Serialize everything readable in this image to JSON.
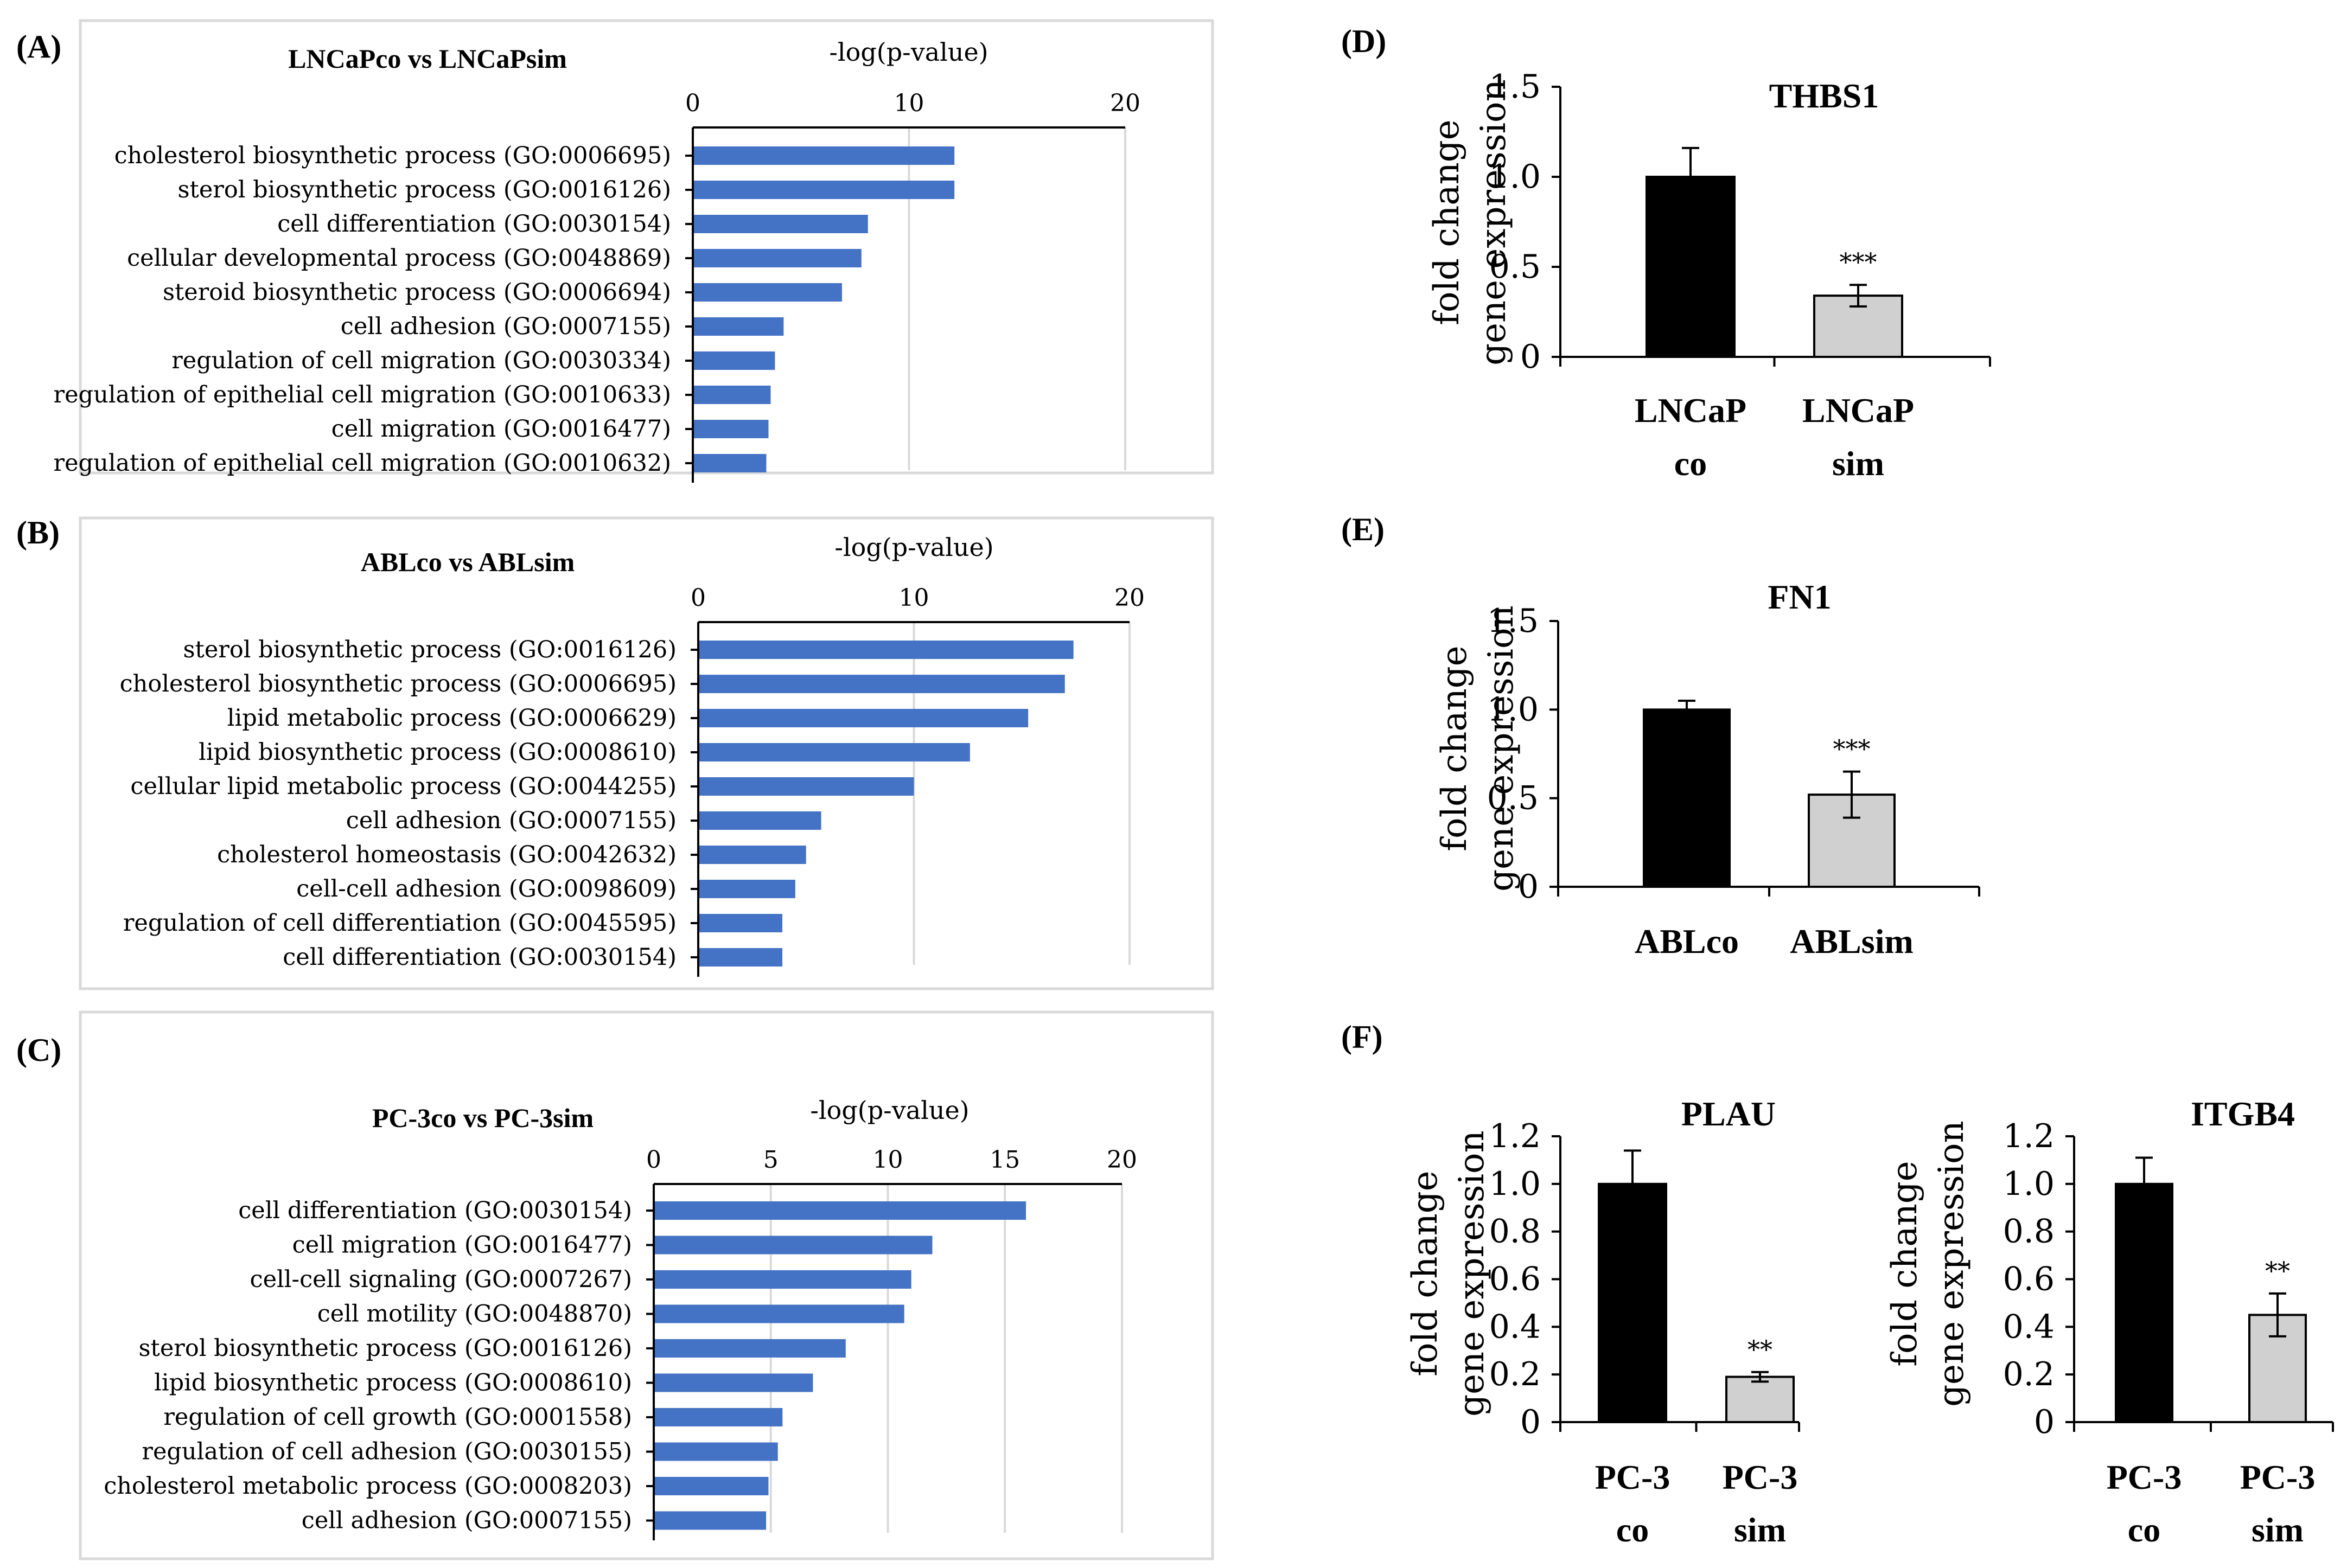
{
  "panel_labels": [
    "(A)",
    "(B)",
    "(C)",
    "(D)",
    "(E)",
    "(F)"
  ],
  "colors": {
    "go_bar": "#4472c4",
    "control_bar": "#000000",
    "treated_bar": "#d0d0d0",
    "frame": "#d9d9d9"
  },
  "chart_data": [
    {
      "id": "A",
      "type": "bar",
      "orientation": "horizontal",
      "title": "LNCaPco vs LNCaPsim",
      "xlabel": "-log(p-value)",
      "xlim": [
        0,
        20
      ],
      "xticks": [
        0,
        10,
        20
      ],
      "categories": [
        "cholesterol biosynthetic process (GO:0006695)",
        "sterol biosynthetic process (GO:0016126)",
        "cell differentiation (GO:0030154)",
        "cellular developmental process (GO:0048869)",
        "steroid biosynthetic process (GO:0006694)",
        "cell adhesion (GO:0007155)",
        "regulation of cell migration (GO:0030334)",
        "regulation of epithelial cell migration (GO:0010633)",
        "cell migration (GO:0016477)",
        "regulation of epithelial cell migration (GO:0010632)"
      ],
      "values": [
        12.1,
        12.1,
        8.1,
        7.8,
        6.9,
        4.2,
        3.8,
        3.6,
        3.5,
        3.4
      ]
    },
    {
      "id": "B",
      "type": "bar",
      "orientation": "horizontal",
      "title": "ABLco vs ABLsim",
      "xlabel": "-log(p-value)",
      "xlim": [
        0,
        20
      ],
      "xticks": [
        0,
        10,
        20
      ],
      "categories": [
        "sterol biosynthetic process (GO:0016126)",
        "cholesterol biosynthetic process (GO:0006695)",
        "lipid metabolic process (GO:0006629)",
        "lipid biosynthetic process (GO:0008610)",
        "cellular lipid metabolic process (GO:0044255)",
        "cell adhesion (GO:0007155)",
        "cholesterol homeostasis (GO:0042632)",
        "cell-cell adhesion (GO:0098609)",
        "regulation of cell differentiation (GO:0045595)",
        "cell differentiation (GO:0030154)"
      ],
      "values": [
        17.4,
        17.0,
        15.3,
        12.6,
        10.0,
        5.7,
        5.0,
        4.5,
        3.9,
        3.9
      ]
    },
    {
      "id": "C",
      "type": "bar",
      "orientation": "horizontal",
      "title": "PC-3co vs PC-3sim",
      "xlabel": "-log(p-value)",
      "xlim": [
        0,
        20
      ],
      "xticks": [
        0,
        5,
        10,
        15,
        20
      ],
      "categories": [
        "cell differentiation (GO:0030154)",
        "cell migration (GO:0016477)",
        "cell-cell signaling (GO:0007267)",
        "cell motility (GO:0048870)",
        "sterol biosynthetic process (GO:0016126)",
        "lipid biosynthetic process (GO:0008610)",
        "regulation of cell growth (GO:0001558)",
        "regulation of cell adhesion (GO:0030155)",
        "cholesterol metabolic process (GO:0008203)",
        "cell adhesion (GO:0007155)"
      ],
      "values": [
        15.9,
        11.9,
        11.0,
        10.7,
        8.2,
        6.8,
        5.5,
        5.3,
        4.9,
        4.8
      ]
    },
    {
      "id": "D",
      "type": "bar",
      "title": "THBS1",
      "ylabel": [
        "fold change",
        "gene expression"
      ],
      "ylim": [
        0,
        1.5
      ],
      "yticks": [
        "0",
        "0.5",
        "1.0",
        "1.5"
      ],
      "categories": [
        [
          "LNCaP",
          "co"
        ],
        [
          "LNCaP",
          "sim"
        ]
      ],
      "values": [
        1.0,
        0.34
      ],
      "errors": [
        0.16,
        0.06
      ],
      "significance": [
        "",
        "***"
      ]
    },
    {
      "id": "E",
      "type": "bar",
      "title": "FN1",
      "ylabel": [
        "fold change",
        "gene expression"
      ],
      "ylim": [
        0,
        1.5
      ],
      "yticks": [
        "0",
        "0.5",
        "1.0",
        "1.5"
      ],
      "categories": [
        [
          "ABLco"
        ],
        [
          "ABLsim"
        ]
      ],
      "values": [
        1.0,
        0.52
      ],
      "errors": [
        0.05,
        0.13
      ],
      "significance": [
        "",
        "***"
      ]
    },
    {
      "id": "F1",
      "type": "bar",
      "title": "PLAU",
      "ylabel": [
        "fold change",
        "gene expression"
      ],
      "ylim": [
        0,
        1.2
      ],
      "yticks": [
        "0",
        "0.2",
        "0.4",
        "0.6",
        "0.8",
        "1.0",
        "1.2"
      ],
      "categories": [
        [
          "PC-3",
          "co"
        ],
        [
          "PC-3",
          "sim"
        ]
      ],
      "values": [
        1.0,
        0.19
      ],
      "errors": [
        0.14,
        0.02
      ],
      "significance": [
        "",
        "**"
      ]
    },
    {
      "id": "F2",
      "type": "bar",
      "title": "ITGB4",
      "ylabel": [
        "fold change",
        "gene expression"
      ],
      "ylim": [
        0,
        1.2
      ],
      "yticks": [
        "0",
        "0.2",
        "0.4",
        "0.6",
        "0.8",
        "1.0",
        "1.2"
      ],
      "categories": [
        [
          "PC-3",
          "co"
        ],
        [
          "PC-3",
          "sim"
        ]
      ],
      "values": [
        1.0,
        0.45
      ],
      "errors": [
        0.11,
        0.09
      ],
      "significance": [
        "",
        "**"
      ]
    }
  ]
}
